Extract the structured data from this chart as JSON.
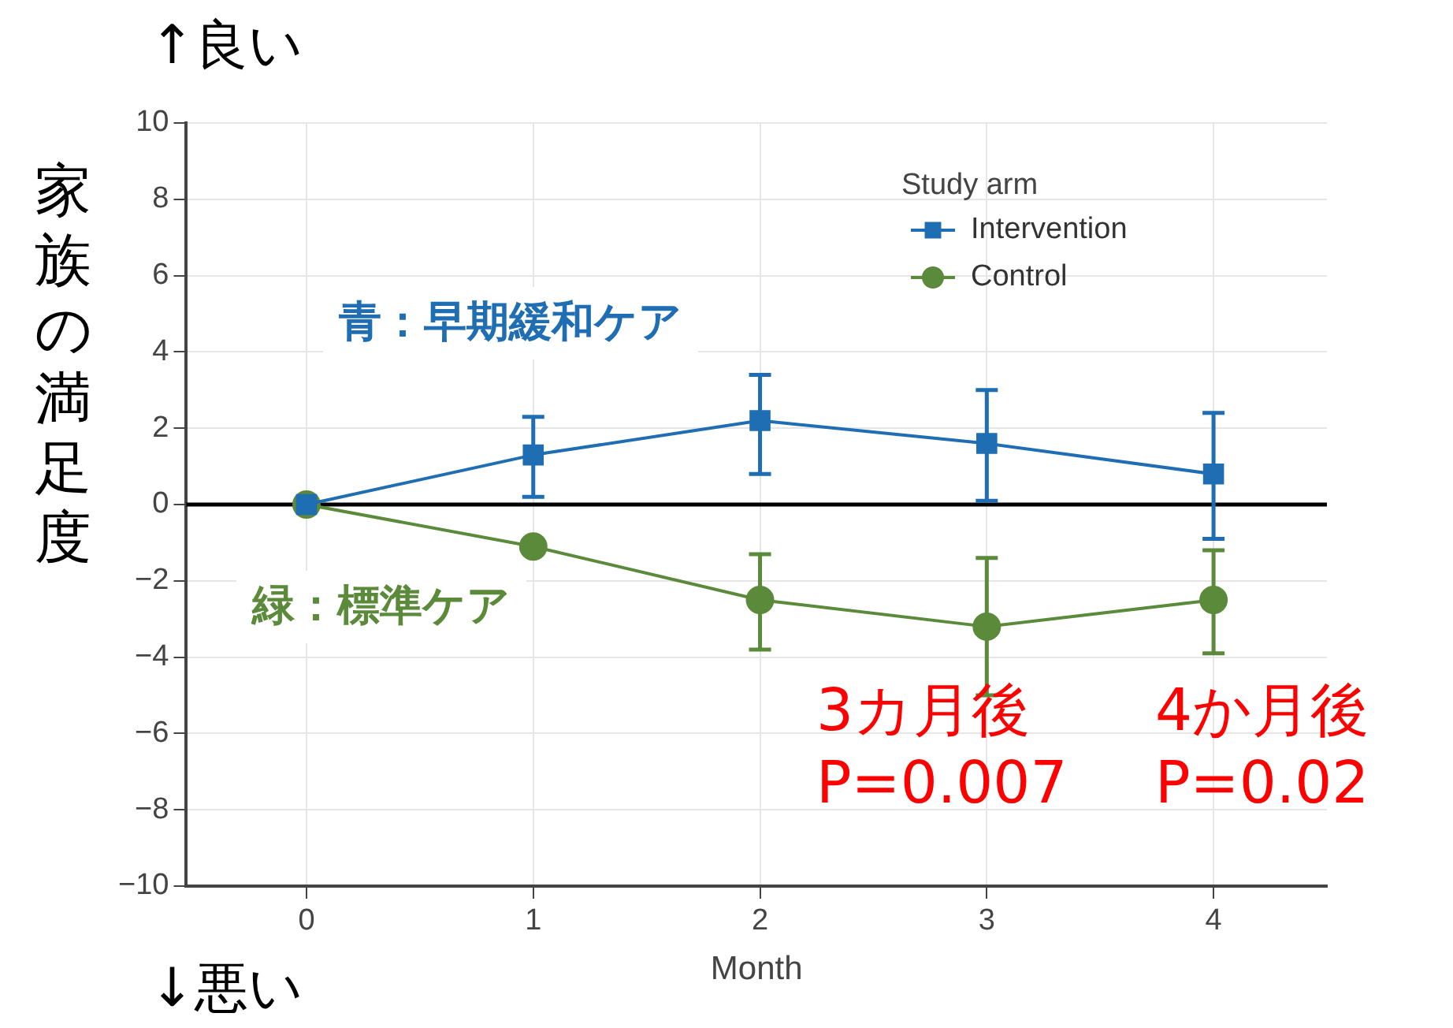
{
  "chart_data": {
    "type": "line",
    "xlabel": "Month",
    "ylabel": "家族の満足度",
    "legend_title": "Study arm",
    "x": [
      0,
      1,
      2,
      3,
      4
    ],
    "series": [
      {
        "name": "Intervention",
        "color": "#1f6db3",
        "marker": "square",
        "values": [
          0,
          1.3,
          2.2,
          1.6,
          0.8
        ],
        "errors": [
          null,
          [
            0.2,
            2.3
          ],
          [
            0.8,
            3.4
          ],
          [
            0.1,
            3.0
          ],
          [
            -0.9,
            2.4
          ]
        ]
      },
      {
        "name": "Control",
        "color": "#5a8a3a",
        "marker": "circle",
        "values": [
          0,
          -1.1,
          -2.5,
          -3.2,
          -2.5
        ],
        "errors": [
          null,
          null,
          [
            -3.8,
            -1.3
          ],
          [
            -5.0,
            -1.4
          ],
          [
            -3.9,
            -1.2
          ]
        ]
      }
    ],
    "xlim": [
      -0.53,
      4.5
    ],
    "xticks": [
      0,
      1,
      2,
      3,
      4
    ],
    "ylim": [
      -10,
      10
    ],
    "yticks": [
      {
        "value": -10,
        "label": "−10"
      },
      {
        "value": -8,
        "label": "−8"
      },
      {
        "value": -6,
        "label": "−6"
      },
      {
        "value": -4,
        "label": "−4"
      },
      {
        "value": -2,
        "label": "−2"
      },
      0,
      2,
      4,
      6,
      8,
      10
    ],
    "ref_lines": [
      {
        "axis": "y",
        "value": 0,
        "color": "#000000"
      }
    ],
    "grid": true,
    "legend": "top right",
    "annotations": [
      "↑良い",
      "↓悪い",
      "青：早期緩和ケア",
      "緑：標準ケア",
      "3カ月後\nP=0.007",
      "4か月後\nP=0.02"
    ]
  }
}
